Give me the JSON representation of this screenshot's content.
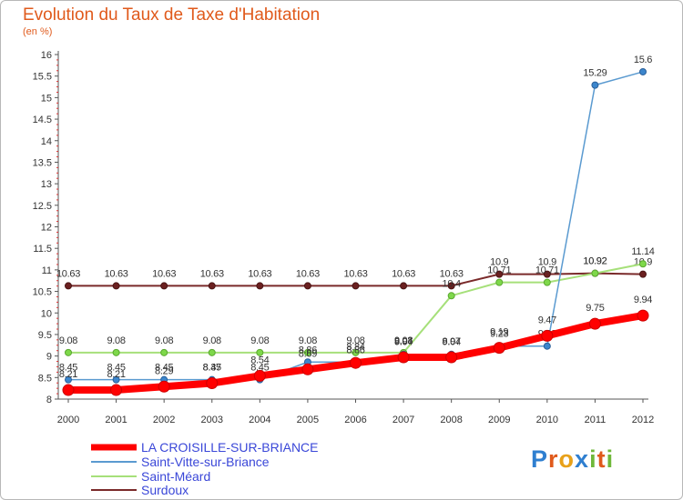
{
  "title": "Evolution du Taux de Taxe d'Habitation",
  "subtitle": "(en %)",
  "brand": {
    "letters": [
      {
        "ch": "P",
        "color": "#2f7fd0"
      },
      {
        "ch": "r",
        "color": "#e05a1c"
      },
      {
        "ch": "o",
        "color": "#e8a11a"
      },
      {
        "ch": "x",
        "color": "#2f7fd0"
      },
      {
        "ch": "i",
        "color": "#6fb83a"
      },
      {
        "ch": "t",
        "color": "#e05a1c"
      },
      {
        "ch": "i",
        "color": "#6fb83a"
      }
    ]
  },
  "chart_data": {
    "type": "line",
    "title": "Evolution du Taux de Taxe d'Habitation",
    "subtitle": "(en %)",
    "x": [
      2000,
      2001,
      2002,
      2003,
      2004,
      2005,
      2006,
      2007,
      2008,
      2009,
      2010,
      2011,
      2012
    ],
    "ylim": [
      8,
      16
    ],
    "yticks": [
      8,
      8.5,
      9,
      9.5,
      10,
      10.5,
      11,
      11.5,
      12,
      12.5,
      13,
      13.5,
      14,
      14.5,
      15,
      15.5,
      16
    ],
    "ytick_labels": [
      "8",
      "8.5",
      "9",
      "9.5",
      "10",
      "10.5",
      "11",
      "11.5",
      "12",
      "12.5",
      "13",
      "13.5",
      "14",
      "14.5",
      "15",
      "15.5",
      "16"
    ],
    "grid": false,
    "legend_position": "bottom-left",
    "series": [
      {
        "name": "Surdoux",
        "color": "#7a2a2a",
        "values": [
          10.63,
          10.63,
          10.63,
          10.63,
          10.63,
          10.63,
          10.63,
          10.63,
          10.63,
          10.9,
          10.9,
          10.92,
          10.9
        ],
        "labels": [
          "10.63",
          "10.63",
          "10.63",
          "10.63",
          "10.63",
          "10.63",
          "10.63",
          "10.63",
          "10.63",
          "10.9",
          "10.9",
          "10.92",
          "10.9"
        ]
      },
      {
        "name": "Saint-Méard",
        "color": "#a6e07a",
        "values": [
          9.08,
          9.08,
          9.08,
          9.08,
          9.08,
          9.08,
          9.08,
          9.08,
          10.4,
          10.71,
          10.71,
          10.92,
          11.14
        ],
        "labels": [
          "9.08",
          "9.08",
          "9.08",
          "9.08",
          "9.08",
          "9.08",
          "9.08",
          "9.08",
          "10.4",
          "10.71",
          "10.71",
          "10.92",
          "11.14"
        ]
      },
      {
        "name": "Saint-Vitte-sur-Briance",
        "color": "#5a9ad0",
        "values": [
          8.45,
          8.45,
          8.45,
          8.45,
          8.45,
          8.86,
          8.86,
          9.04,
          9.04,
          9.23,
          9.23,
          15.29,
          15.6
        ],
        "labels": [
          "8.45",
          "8.45",
          "8.45",
          "8.45",
          "8.45",
          "8.86",
          "8.86",
          "9.04",
          "9.04",
          "9.23",
          "9.23",
          "15.29",
          "15.6"
        ]
      },
      {
        "name": "LA CROISILLE-SUR-BRIANCE",
        "color": "#ff0000",
        "values": [
          8.21,
          8.21,
          8.29,
          8.37,
          8.54,
          8.69,
          8.84,
          8.97,
          8.97,
          9.19,
          9.47,
          9.75,
          9.94
        ],
        "labels": [
          "8.21",
          "8.21",
          "8.29",
          "8.37",
          "8.54",
          "8.69",
          "8.84",
          "8.97",
          "8.97",
          "9.19",
          "9.47",
          "9.75",
          "9.94"
        ]
      }
    ],
    "legend": [
      {
        "name": "LA CROISILLE-SUR-BRIANCE",
        "color": "#ff0000",
        "style": "thick"
      },
      {
        "name": "Saint-Vitte-sur-Briance",
        "color": "#5a9ad0",
        "style": "thin"
      },
      {
        "name": "Saint-Méard",
        "color": "#a6e07a",
        "style": "thin"
      },
      {
        "name": "Surdoux",
        "color": "#7a2a2a",
        "style": "thin"
      }
    ]
  }
}
